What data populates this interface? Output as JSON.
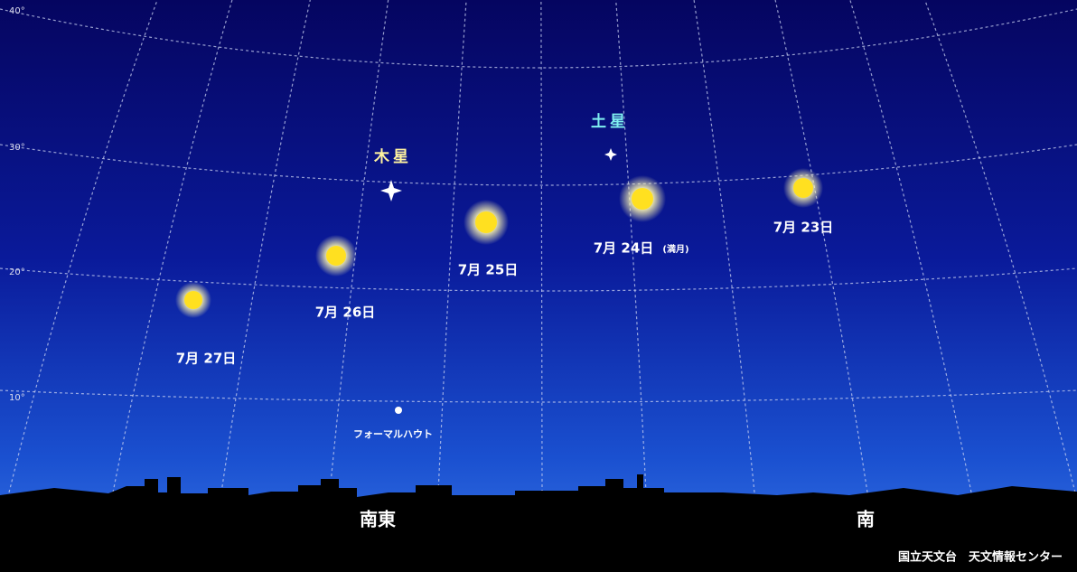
{
  "altitude_labels": [
    "40°",
    "30°",
    "20°",
    "10°"
  ],
  "moons": [
    {
      "date": "7月 23日"
    },
    {
      "date": "7月 24日",
      "note": "(満月)"
    },
    {
      "date": "7月 25日"
    },
    {
      "date": "7月 26日"
    },
    {
      "date": "7月 27日"
    }
  ],
  "planets": {
    "jupiter": "木星",
    "saturn": "土星"
  },
  "star": "フォーマルハウト",
  "directions": {
    "southeast": "南東",
    "south": "南"
  },
  "credit": "国立天文台　天文情報センター"
}
